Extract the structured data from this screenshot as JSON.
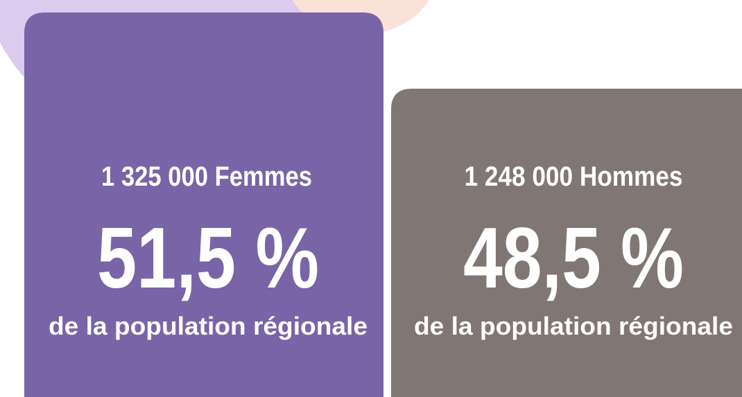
{
  "cards": [
    {
      "count": "1 325 000 Femmes",
      "percent": "51,5 %",
      "caption": "de la population régionale"
    },
    {
      "count": "1 248 000 Hommes",
      "percent": "48,5 %",
      "caption": "de la population régionale"
    }
  ]
}
